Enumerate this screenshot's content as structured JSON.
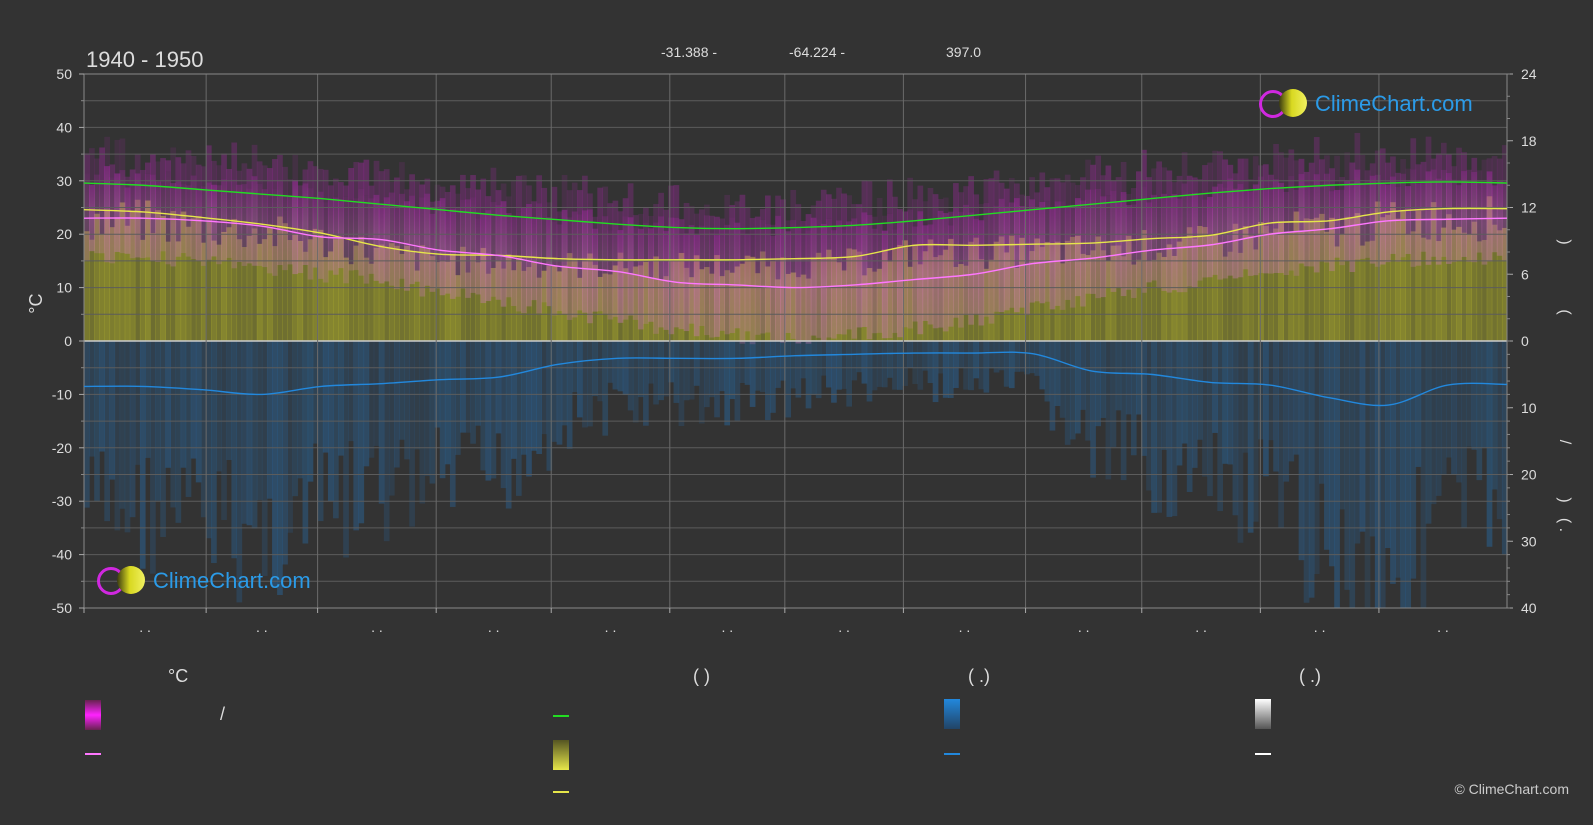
{
  "header": {
    "title": "1940 - 1950",
    "latitude": "-31.388 -",
    "longitude": "-64.224 -",
    "elevation": "397.0"
  },
  "brand": {
    "name": "ClimeChart.com",
    "copyright": "© ClimeChart.com"
  },
  "legend": {
    "temp_header": "°C",
    "sun_header": "(          )",
    "rain_header": "(    .)",
    "snow_header": "(    .)",
    "slash": "/"
  },
  "colors": {
    "background": "#333333",
    "daylight": "#22dd22",
    "sunshine": "#e6e64a",
    "temp_mean": "#ff77ff",
    "temp_range": "#dd22dd",
    "precipitation": "#2288dd",
    "snow": "#ffffff",
    "grid": "#666666",
    "brand": "#2b9be8"
  },
  "chart_data": {
    "type": "area",
    "title": "1940 - 1950",
    "ylabel_left": "°C",
    "ylim_left": [
      -50,
      50
    ],
    "yticks_left": [
      50,
      40,
      30,
      20,
      10,
      0,
      -10,
      -20,
      -30,
      -40,
      -50
    ],
    "ylim_right_top": [
      0,
      24
    ],
    "yticks_right_top": [
      24,
      18,
      12,
      6,
      0
    ],
    "ylim_right_bottom": [
      0,
      40
    ],
    "yticks_right_bottom": [
      0,
      10,
      20,
      30,
      40
    ],
    "right_label_fragments": [
      ")",
      "(",
      "/",
      ")",
      "( ."
    ],
    "x_month_labels": [
      ". .",
      ". .",
      ". .",
      ". .",
      ". .",
      ". .",
      ". .",
      ". .",
      ". .",
      ". .",
      ". .",
      ". ."
    ],
    "grid": true,
    "x": [
      0,
      0.5,
      1,
      1.5,
      2,
      2.5,
      3,
      3.5,
      4,
      4.5,
      5,
      5.5,
      6,
      6.5,
      7,
      7.5,
      8,
      8.5,
      9,
      9.5,
      10,
      10.5,
      11,
      11.5,
      12
    ],
    "series": [
      {
        "key": "daylight",
        "unit": "h",
        "values": [
          14.2,
          14.0,
          13.6,
          13.2,
          12.8,
          12.3,
          11.8,
          11.3,
          10.9,
          10.5,
          10.2,
          10.1,
          10.2,
          10.4,
          10.8,
          11.3,
          11.8,
          12.3,
          12.8,
          13.3,
          13.7,
          14.0,
          14.2,
          14.3,
          14.2
        ]
      },
      {
        "key": "sunshine",
        "unit": "h",
        "values": [
          11.8,
          11.6,
          11.1,
          10.5,
          9.7,
          8.5,
          7.8,
          7.7,
          7.4,
          7.3,
          7.3,
          7.3,
          7.4,
          7.6,
          8.6,
          8.6,
          8.7,
          8.8,
          9.2,
          9.5,
          10.6,
          10.8,
          11.6,
          11.9,
          11.9
        ]
      },
      {
        "key": "temp_mean",
        "unit": "°C",
        "values": [
          23.0,
          23.0,
          22.5,
          21.5,
          19.5,
          19.0,
          17.0,
          16.0,
          14.0,
          13.0,
          11.0,
          10.5,
          10.0,
          10.5,
          11.5,
          12.5,
          14.5,
          15.5,
          17.0,
          18.0,
          20.0,
          21.0,
          22.5,
          22.8,
          23.0
        ]
      },
      {
        "key": "temp_max",
        "unit": "°C",
        "values": [
          29.0,
          28.5,
          28.0,
          27.0,
          26.0,
          25.0,
          23.5,
          22.5,
          21.5,
          20.5,
          20.0,
          19.5,
          19.5,
          20.0,
          21.0,
          22.0,
          23.5,
          24.5,
          25.5,
          26.5,
          27.5,
          28.0,
          28.5,
          29.0,
          29.0
        ]
      },
      {
        "key": "temp_min",
        "unit": "°C",
        "values": [
          17.0,
          17.0,
          16.5,
          15.5,
          14.0,
          13.0,
          10.5,
          9.0,
          7.0,
          5.5,
          3.5,
          2.5,
          2.0,
          2.5,
          4.0,
          5.5,
          8.0,
          9.5,
          11.5,
          12.5,
          14.5,
          15.5,
          16.5,
          17.0,
          17.0
        ]
      },
      {
        "key": "precipitation",
        "unit": "mm",
        "values": [
          6.8,
          6.8,
          7.3,
          8.0,
          6.8,
          6.4,
          5.8,
          5.4,
          3.5,
          2.6,
          2.6,
          2.6,
          2.2,
          2.0,
          1.8,
          1.8,
          1.9,
          4.5,
          5.0,
          6.2,
          6.6,
          8.5,
          9.6,
          6.6,
          6.5
        ]
      }
    ]
  }
}
